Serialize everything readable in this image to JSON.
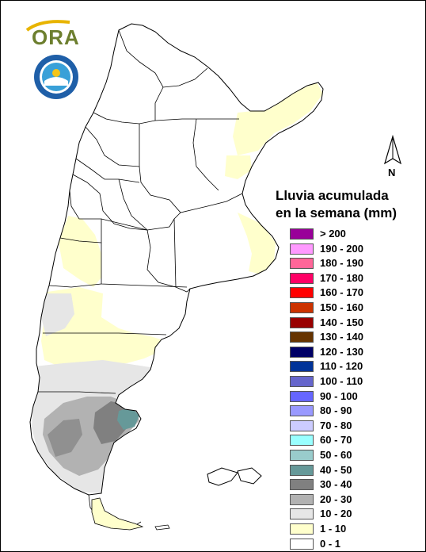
{
  "legend": {
    "title_line1": "Lluvia acumulada",
    "title_line2": "en la semana (mm)",
    "classes": [
      {
        "label": "> 200",
        "color": "#990099"
      },
      {
        "label": "190 - 200",
        "color": "#ff99ff"
      },
      {
        "label": "180 - 190",
        "color": "#ff6699"
      },
      {
        "label": "170 - 180",
        "color": "#ff0066"
      },
      {
        "label": "160 - 170",
        "color": "#ff0000"
      },
      {
        "label": "150 - 160",
        "color": "#cc3300"
      },
      {
        "label": "140 - 150",
        "color": "#990000"
      },
      {
        "label": "130 - 140",
        "color": "#663300"
      },
      {
        "label": "120 - 130",
        "color": "#000066"
      },
      {
        "label": "110 - 120",
        "color": "#003399"
      },
      {
        "label": "100 - 110",
        "color": "#6666cc"
      },
      {
        "label": "90 - 100",
        "color": "#6666ff"
      },
      {
        "label": "80 - 90",
        "color": "#9999ff"
      },
      {
        "label": "70 - 80",
        "color": "#ccccff"
      },
      {
        "label": "60 - 70",
        "color": "#99ffff"
      },
      {
        "label": "50 - 60",
        "color": "#99cccc"
      },
      {
        "label": "40 - 50",
        "color": "#669999"
      },
      {
        "label": "30 - 40",
        "color": "#808080"
      },
      {
        "label": "20 - 30",
        "color": "#b2b2b2"
      },
      {
        "label": "10 - 20",
        "color": "#e6e6e6"
      },
      {
        "label": "1 - 10",
        "color": "#ffffcc"
      },
      {
        "label": "0 - 1",
        "color": "#ffffff"
      }
    ]
  },
  "north_arrow": {
    "label": "N"
  },
  "logo": {
    "text": "ORA",
    "color": "#6d7f2f"
  },
  "seal": {
    "icon": "smn-seal-icon"
  },
  "map": {
    "background_class": "0 - 1",
    "outline_color": "#000000"
  }
}
